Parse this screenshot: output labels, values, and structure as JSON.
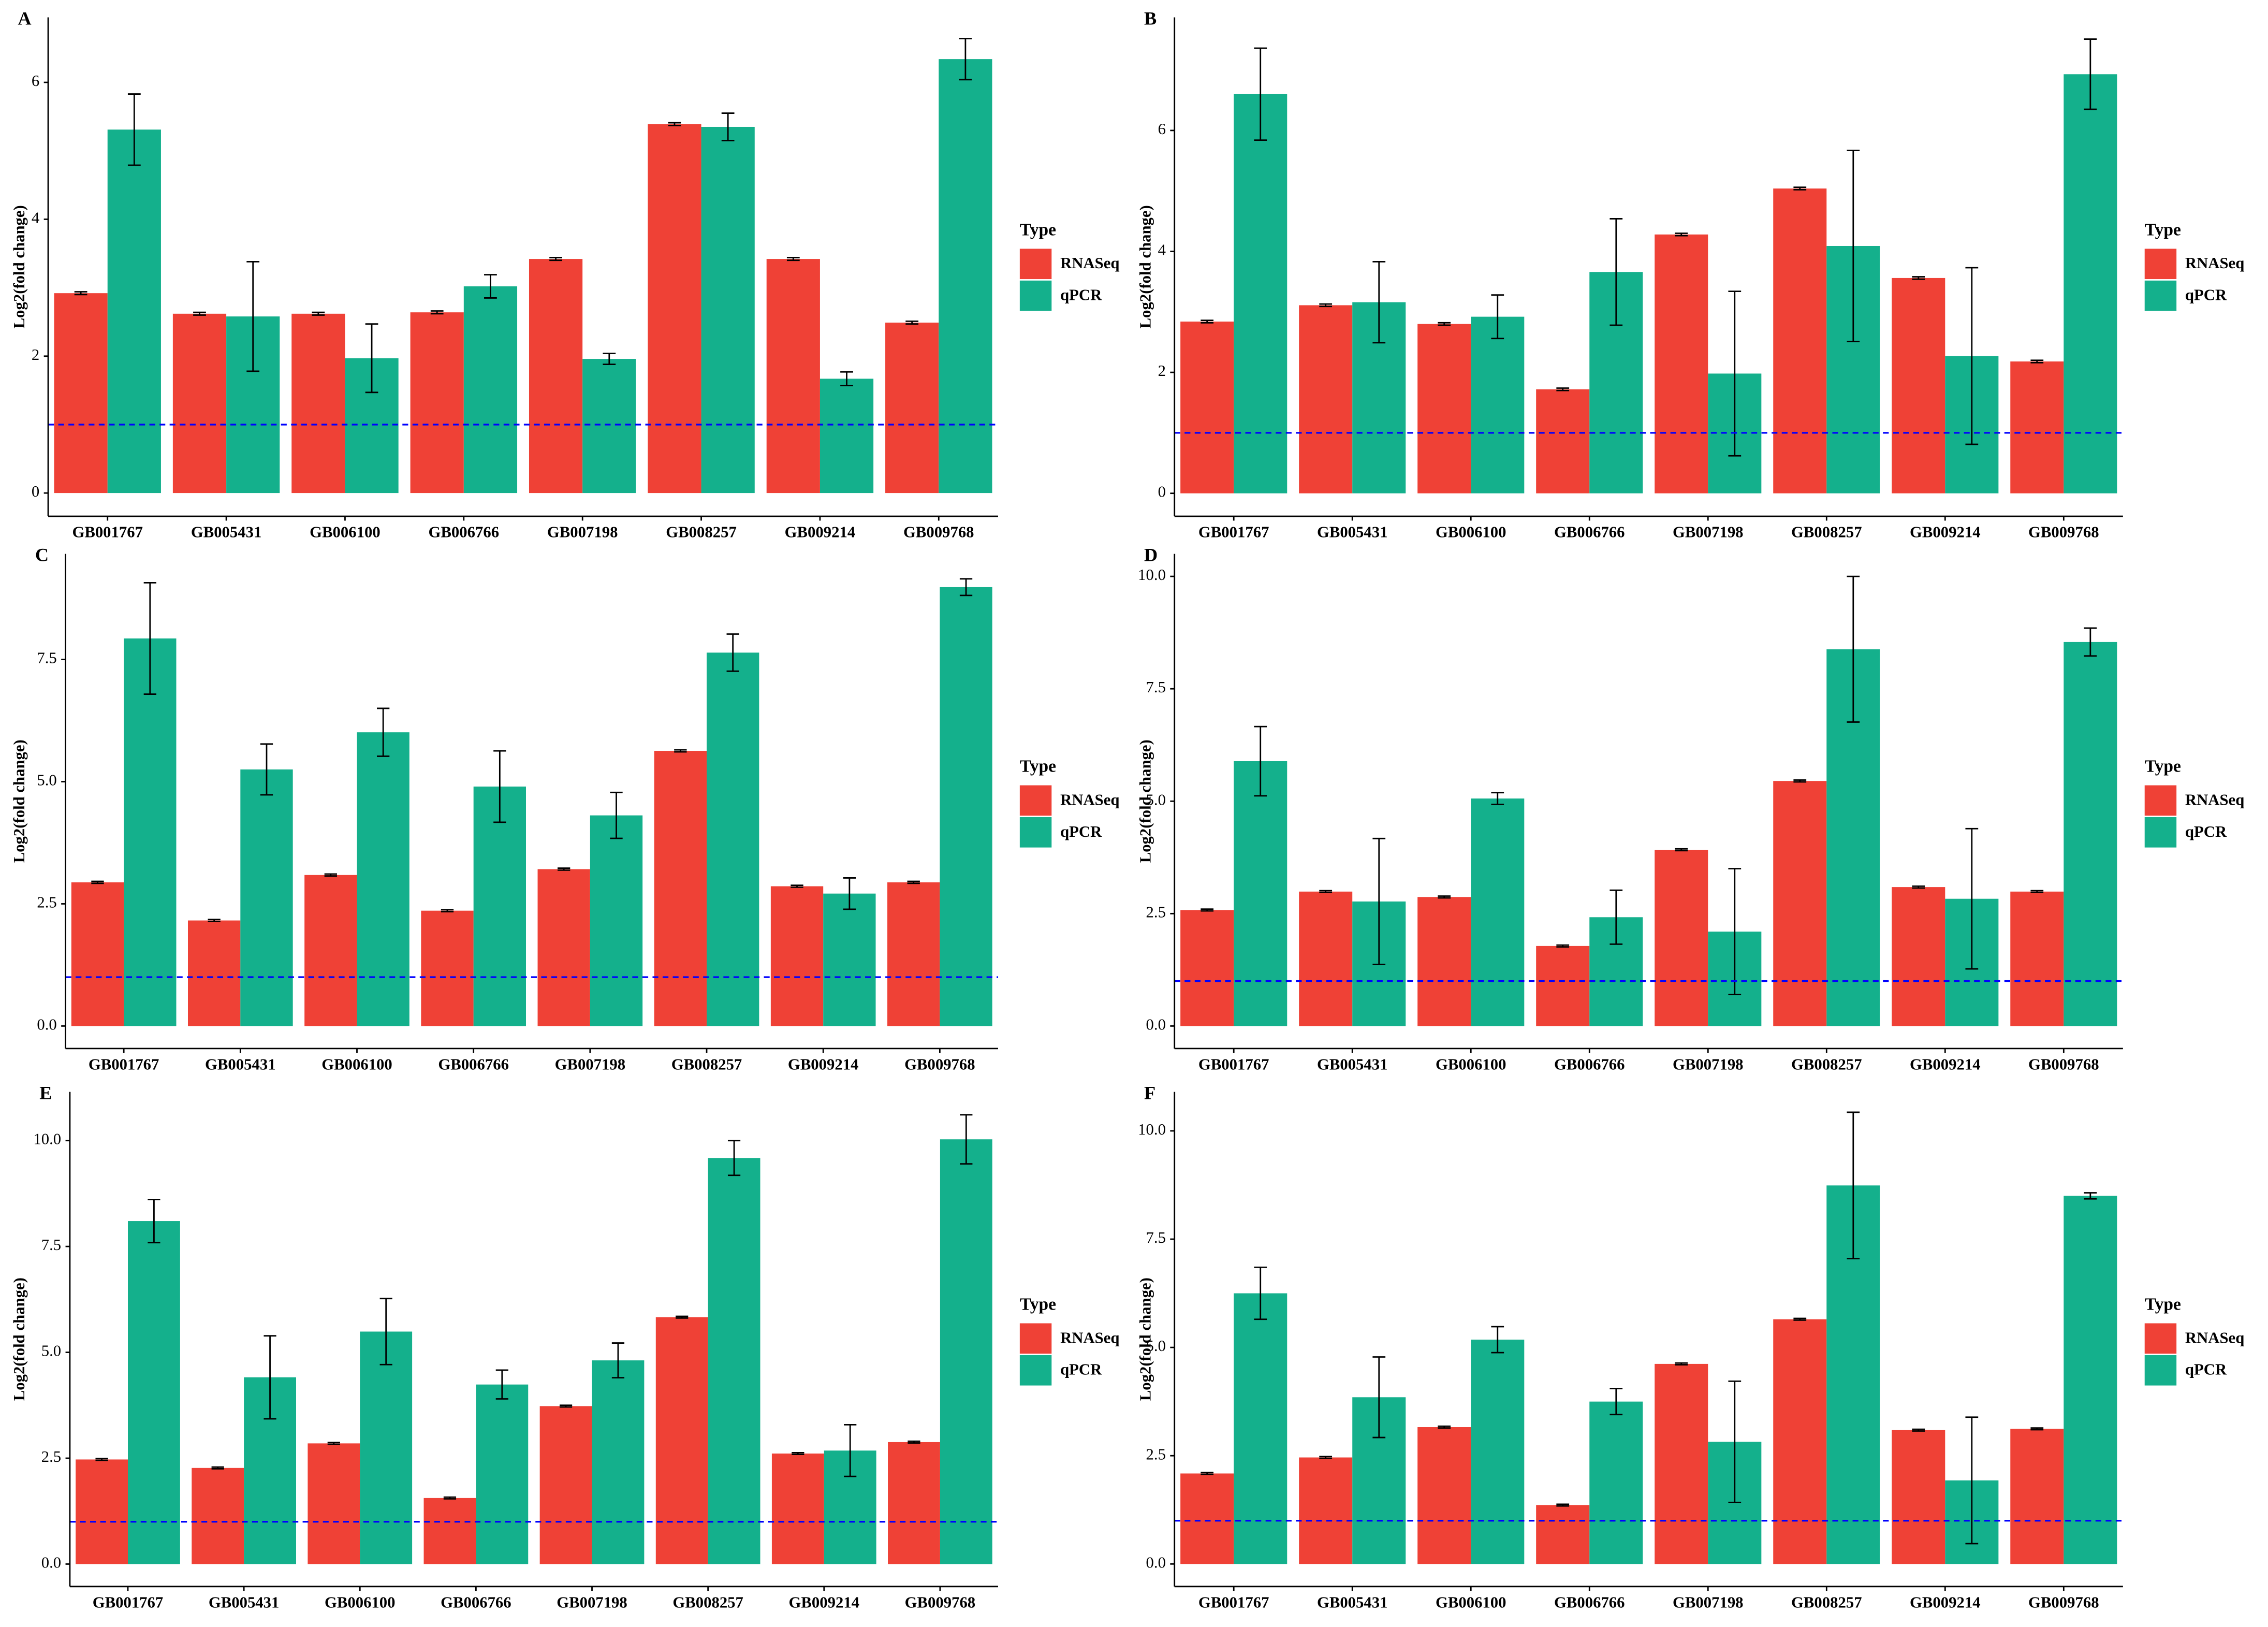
{
  "chart_data": [
    {
      "type": "bar",
      "panel": "A",
      "ylabel": "Log2(fold change)",
      "legend_title": "Type",
      "hline": 1,
      "hline_color": "#0000ff",
      "categories": [
        "GB001767",
        "GB005431",
        "GB006100",
        "GB006766",
        "GB007198",
        "GB008257",
        "GB009214",
        "GB009768"
      ],
      "series": [
        {
          "name": "RNASeq",
          "color": "#ef4136",
          "values": [
            2.92,
            2.62,
            2.62,
            2.64,
            3.42,
            5.39,
            3.42,
            2.49
          ],
          "errors": [
            0.02,
            0.02,
            0.02,
            0.02,
            0.02,
            0.02,
            0.02,
            0.02
          ]
        },
        {
          "name": "qPCR",
          "color": "#14b08c",
          "values": [
            5.31,
            2.58,
            1.97,
            3.02,
            1.96,
            5.35,
            1.67,
            6.34
          ],
          "errors": [
            0.52,
            0.8,
            0.5,
            0.17,
            0.08,
            0.2,
            0.1,
            0.3
          ]
        }
      ],
      "ylim": [
        -0.34,
        6.95
      ],
      "yticks": [
        0,
        2,
        4,
        6
      ]
    },
    {
      "type": "bar",
      "panel": "B",
      "ylabel": "Log2(fold change)",
      "legend_title": "Type",
      "hline": 1,
      "hline_color": "#0000ff",
      "categories": [
        "GB001767",
        "GB005431",
        "GB006100",
        "GB006766",
        "GB007198",
        "GB008257",
        "GB009214",
        "GB009768"
      ],
      "series": [
        {
          "name": "RNASeq",
          "color": "#ef4136",
          "values": [
            2.84,
            3.11,
            2.8,
            1.72,
            4.28,
            5.04,
            3.56,
            2.18
          ],
          "errors": [
            0.02,
            0.02,
            0.02,
            0.02,
            0.02,
            0.02,
            0.02,
            0.02
          ]
        },
        {
          "name": "qPCR",
          "color": "#14b08c",
          "values": [
            6.6,
            3.16,
            2.92,
            3.66,
            1.98,
            4.09,
            2.27,
            6.93
          ],
          "errors": [
            0.76,
            0.67,
            0.36,
            0.88,
            1.36,
            1.58,
            1.46,
            0.58
          ]
        }
      ],
      "ylim": [
        -0.38,
        7.87
      ],
      "yticks": [
        0,
        2,
        4,
        6
      ]
    },
    {
      "type": "bar",
      "panel": "C",
      "ylabel": "Log2(fold change)",
      "legend_title": "Type",
      "hline": 1,
      "hline_color": "#0000ff",
      "categories": [
        "GB001767",
        "GB005431",
        "GB006100",
        "GB006766",
        "GB007198",
        "GB008257",
        "GB009214",
        "GB009768"
      ],
      "series": [
        {
          "name": "RNASeq",
          "color": "#ef4136",
          "values": [
            2.94,
            2.16,
            3.09,
            2.36,
            3.21,
            5.63,
            2.86,
            2.94
          ],
          "errors": [
            0.02,
            0.02,
            0.02,
            0.02,
            0.02,
            0.02,
            0.02,
            0.02
          ]
        },
        {
          "name": "qPCR",
          "color": "#14b08c",
          "values": [
            7.93,
            5.25,
            6.01,
            4.9,
            4.31,
            7.64,
            2.71,
            8.98
          ],
          "errors": [
            1.14,
            0.52,
            0.49,
            0.73,
            0.47,
            0.38,
            0.32,
            0.17
          ]
        }
      ],
      "ylim": [
        -0.46,
        9.66
      ],
      "yticks": [
        {
          "value": 0,
          "label": "0.0"
        },
        2.5,
        {
          "value": 5,
          "label": "5.0"
        },
        7.5
      ]
    },
    {
      "type": "bar",
      "panel": "D",
      "ylabel": "Log2(fold change)",
      "legend_title": "Type",
      "hline": 1,
      "hline_color": "#0000ff",
      "categories": [
        "GB001767",
        "GB005431",
        "GB006100",
        "GB006766",
        "GB007198",
        "GB008257",
        "GB009214",
        "GB009768"
      ],
      "series": [
        {
          "name": "RNASeq",
          "color": "#ef4136",
          "values": [
            2.58,
            2.99,
            2.87,
            1.78,
            3.92,
            5.45,
            3.09,
            2.99
          ],
          "errors": [
            0.02,
            0.02,
            0.02,
            0.02,
            0.02,
            0.02,
            0.02,
            0.02
          ]
        },
        {
          "name": "qPCR",
          "color": "#14b08c",
          "values": [
            5.89,
            2.77,
            5.06,
            2.42,
            2.1,
            8.38,
            2.83,
            8.54
          ],
          "errors": [
            0.77,
            1.4,
            0.13,
            0.6,
            1.4,
            1.62,
            1.56,
            0.31
          ]
        }
      ],
      "ylim": [
        -0.5,
        10.5
      ],
      "yticks": [
        {
          "value": 0,
          "label": "0.0"
        },
        2.5,
        {
          "value": 5,
          "label": "5.0"
        },
        7.5,
        {
          "value": 10,
          "label": "10.0"
        }
      ]
    },
    {
      "type": "bar",
      "panel": "E",
      "ylabel": "Log2(fold change)",
      "legend_title": "Type",
      "hline": 1,
      "hline_color": "#0000ff",
      "categories": [
        "GB001767",
        "GB005431",
        "GB006100",
        "GB006766",
        "GB007198",
        "GB008257",
        "GB009214",
        "GB009768"
      ],
      "series": [
        {
          "name": "RNASeq",
          "color": "#ef4136",
          "values": [
            2.47,
            2.27,
            2.85,
            1.56,
            3.73,
            5.83,
            2.61,
            2.88
          ],
          "errors": [
            0.02,
            0.02,
            0.02,
            0.02,
            0.02,
            0.02,
            0.02,
            0.02
          ]
        },
        {
          "name": "qPCR",
          "color": "#14b08c",
          "values": [
            8.1,
            4.41,
            5.49,
            4.24,
            4.81,
            9.59,
            2.68,
            10.03
          ],
          "errors": [
            0.51,
            0.98,
            0.78,
            0.34,
            0.41,
            0.41,
            0.61,
            0.58
          ]
        }
      ],
      "ylim": [
        -0.53,
        11.15
      ],
      "yticks": [
        {
          "value": 0,
          "label": "0.0"
        },
        2.5,
        {
          "value": 5,
          "label": "5.0"
        },
        7.5,
        {
          "value": 10,
          "label": "10.0"
        }
      ]
    },
    {
      "type": "bar",
      "panel": "F",
      "ylabel": "Log2(fold change)",
      "legend_title": "Type",
      "hline": 1,
      "hline_color": "#0000ff",
      "categories": [
        "GB001767",
        "GB005431",
        "GB006100",
        "GB006766",
        "GB007198",
        "GB008257",
        "GB009214",
        "GB009768"
      ],
      "series": [
        {
          "name": "RNASeq",
          "color": "#ef4136",
          "values": [
            2.09,
            2.46,
            3.16,
            1.36,
            4.62,
            5.65,
            3.09,
            3.12
          ],
          "errors": [
            0.02,
            0.02,
            0.02,
            0.02,
            0.02,
            0.02,
            0.02,
            0.02
          ]
        },
        {
          "name": "qPCR",
          "color": "#14b08c",
          "values": [
            6.25,
            3.85,
            5.18,
            3.75,
            2.82,
            8.74,
            1.93,
            8.5
          ],
          "errors": [
            0.6,
            0.93,
            0.3,
            0.3,
            1.4,
            1.69,
            1.46,
            0.07
          ]
        }
      ],
      "ylim": [
        -0.52,
        10.9
      ],
      "yticks": [
        {
          "value": 0,
          "label": "0.0"
        },
        2.5,
        {
          "value": 5,
          "label": "5.0"
        },
        7.5,
        {
          "value": 10,
          "label": "10.0"
        }
      ]
    }
  ]
}
